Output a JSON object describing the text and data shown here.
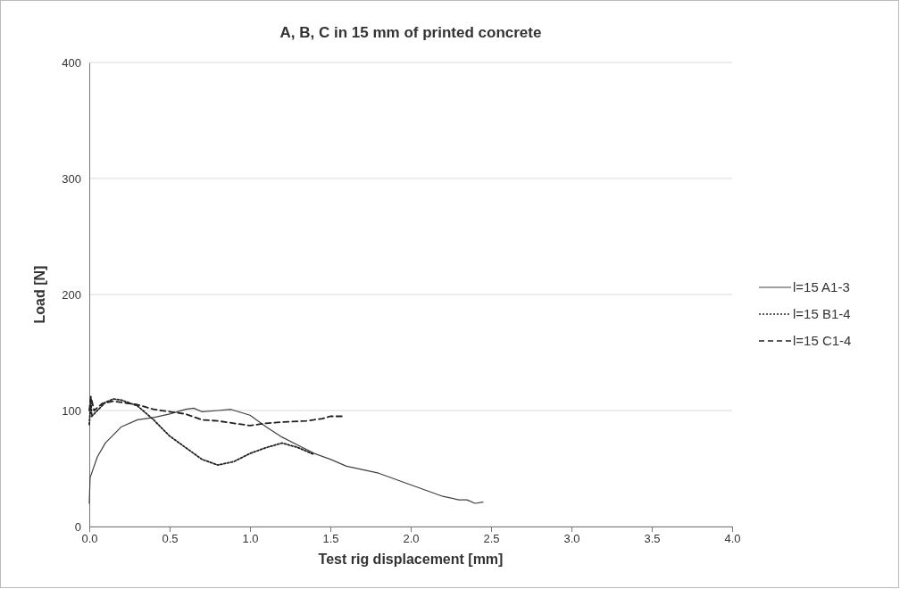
{
  "chart_data": {
    "type": "line",
    "title": "A, B, C in 15 mm of printed concrete",
    "xlabel": "Test rig displacement [mm]",
    "ylabel": "Load [N]",
    "xlim": [
      0,
      4
    ],
    "xticks": [
      {
        "value": 0,
        "label": "0.0"
      },
      {
        "value": 0.5,
        "label": "0.5"
      },
      {
        "value": 1,
        "label": "1.0"
      },
      {
        "value": 1.5,
        "label": "1.5"
      },
      {
        "value": 2,
        "label": "2.0"
      },
      {
        "value": 2.5,
        "label": "2.5"
      },
      {
        "value": 3,
        "label": "3.0"
      },
      {
        "value": 3.5,
        "label": "3.5"
      },
      {
        "value": 4,
        "label": "4.0"
      }
    ],
    "ylim": [
      0,
      400
    ],
    "yticks": [
      0,
      100,
      200,
      300,
      400
    ],
    "grid": "y",
    "legend": "right",
    "marker": "none",
    "series": [
      {
        "name": "l=15 A1-3",
        "color": "#404040",
        "line_style": "solid",
        "x": [
          0,
          0.005,
          0.05,
          0.1,
          0.2,
          0.3,
          0.4,
          0.5,
          0.6,
          0.65,
          0.7,
          0.8,
          0.88,
          1.0,
          1.1,
          1.2,
          1.3,
          1.4,
          1.5,
          1.6,
          1.8,
          2.0,
          2.1,
          2.2,
          2.3,
          2.35,
          2.4,
          2.45
        ],
        "values": [
          20,
          42,
          60,
          72,
          86,
          92,
          94,
          97,
          101,
          102,
          99,
          100,
          101,
          96,
          86,
          77,
          70,
          63,
          58,
          52,
          46,
          36,
          31,
          26,
          23,
          23,
          20,
          21
        ]
      },
      {
        "name": "l=15 B1-4",
        "color": "#202020",
        "line_style": "dotted",
        "x": [
          0,
          0.01,
          0.015,
          0.05,
          0.1,
          0.15,
          0.2,
          0.3,
          0.4,
          0.5,
          0.6,
          0.7,
          0.8,
          0.9,
          1.0,
          1.1,
          1.2,
          1.3,
          1.4
        ],
        "values": [
          88,
          110,
          95,
          100,
          107,
          110,
          109,
          104,
          92,
          78,
          68,
          58,
          53,
          56,
          63,
          68,
          72,
          68,
          62
        ]
      },
      {
        "name": "l=15 C1-4",
        "color": "#202020",
        "line_style": "dashed",
        "x": [
          0,
          0.01,
          0.03,
          0.08,
          0.15,
          0.3,
          0.4,
          0.5,
          0.6,
          0.7,
          0.8,
          0.9,
          1.0,
          1.1,
          1.2,
          1.35,
          1.45,
          1.5,
          1.58
        ],
        "values": [
          100,
          112,
          100,
          106,
          108,
          105,
          101,
          99,
          97,
          92,
          91,
          89,
          87,
          89,
          90,
          91,
          93,
          95,
          95
        ]
      }
    ]
  }
}
